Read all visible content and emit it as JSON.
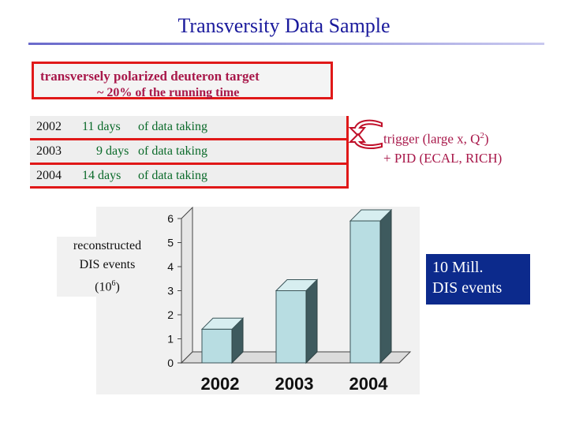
{
  "slide": {
    "title": "Transversity Data Sample"
  },
  "target": {
    "line1": "transversely polarized deuteron target",
    "line2": "~ 20%  of the running time"
  },
  "runs": [
    {
      "year": "2002",
      "days": "11 days",
      "note": "of data taking"
    },
    {
      "year": "2003",
      "days": "9 days",
      "note": "of data taking"
    },
    {
      "year": "2004",
      "days": "14 days",
      "note": "of data taking"
    }
  ],
  "trigger": {
    "line1_pre": "trigger (large x, Q",
    "line1_sup": "2",
    "line1_post": ")",
    "line2": "+ PID (ECAL, RICH)"
  },
  "axis_note": {
    "line1": "reconstructed",
    "line2": "DIS events",
    "line3_pre": "(10",
    "line3_sup": "6",
    "line3_post": ")"
  },
  "callout": {
    "line1": "10 Mill.",
    "line2": "DIS events"
  },
  "colors": {
    "title": "#1a1a9c",
    "accent_red": "#e01818",
    "text_magenta": "#a8184a",
    "text_green": "#0a6a2a",
    "bar_face": "#b8dde2",
    "bar_side": "#3e5a5e",
    "callout_bg": "#0c2a8c"
  },
  "chart_data": {
    "type": "bar",
    "categories": [
      "2002",
      "2003",
      "2004"
    ],
    "values": [
      1.4,
      3.0,
      5.9
    ],
    "yticks": [
      "0",
      "1",
      "2",
      "3",
      "4",
      "5",
      "6"
    ],
    "ylim": [
      0,
      6
    ],
    "style": "3d-bar",
    "grid": false
  }
}
